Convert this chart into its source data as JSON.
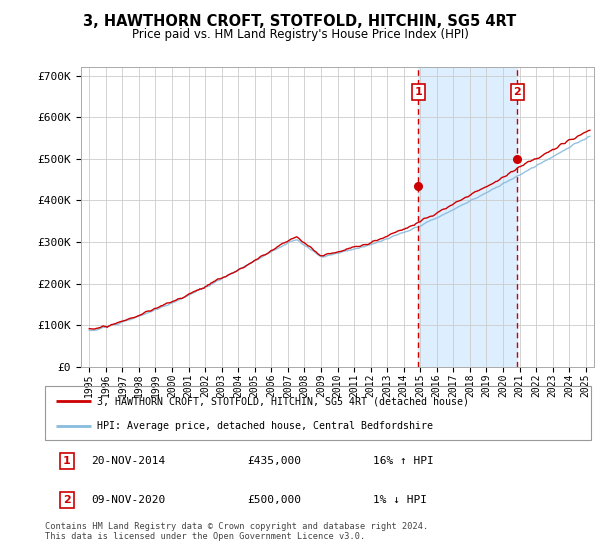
{
  "title": "3, HAWTHORN CROFT, STOTFOLD, HITCHIN, SG5 4RT",
  "subtitle": "Price paid vs. HM Land Registry's House Price Index (HPI)",
  "ylabel_ticks": [
    "£0",
    "£100K",
    "£200K",
    "£300K",
    "£400K",
    "£500K",
    "£600K",
    "£700K"
  ],
  "ytick_vals": [
    0,
    100000,
    200000,
    300000,
    400000,
    500000,
    600000,
    700000
  ],
  "ylim": [
    0,
    720000
  ],
  "xlim_start": 1994.5,
  "xlim_end": 2025.5,
  "sale1_x": 2014.88,
  "sale1_y": 435000,
  "sale1_label": "20-NOV-2014",
  "sale1_price": "£435,000",
  "sale1_hpi": "16% ↑ HPI",
  "sale2_x": 2020.86,
  "sale2_y": 500000,
  "sale2_label": "09-NOV-2020",
  "sale2_price": "£500,000",
  "sale2_hpi": "1% ↓ HPI",
  "red_line_color": "#cc0000",
  "blue_line_color": "#88bbdd",
  "shade_color": "#ddeeff",
  "dashed_line_color": "#cc0000",
  "grid_color": "#cccccc",
  "background_color": "#ffffff",
  "legend_label_red": "3, HAWTHORN CROFT, STOTFOLD, HITCHIN, SG5 4RT (detached house)",
  "legend_label_blue": "HPI: Average price, detached house, Central Bedfordshire",
  "footer": "Contains HM Land Registry data © Crown copyright and database right 2024.\nThis data is licensed under the Open Government Licence v3.0."
}
